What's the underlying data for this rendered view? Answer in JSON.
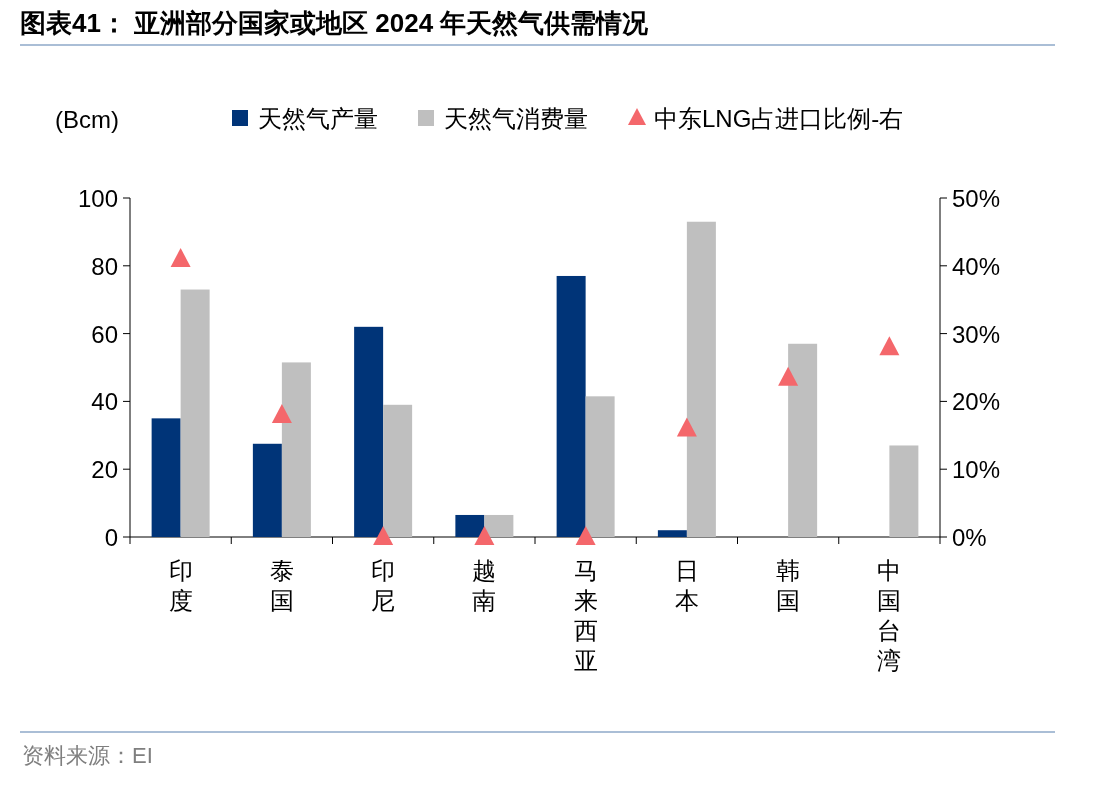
{
  "chart_data": {
    "type": "bar",
    "title": "图表41：  亚洲部分国家或地区 2024 年天然气供需情况",
    "ylabel": "(Bcm)",
    "categories": [
      "印度",
      "泰国",
      "印尼",
      "越南",
      "马来西亚",
      "日本",
      "韩国",
      "中国台湾"
    ],
    "series": [
      {
        "name": "天然气产量",
        "color": "#003478",
        "values": [
          35,
          27.5,
          62,
          6.5,
          77,
          2,
          0,
          0
        ]
      },
      {
        "name": "天然气消费量",
        "color": "#bfbfbf",
        "values": [
          73,
          51.5,
          39,
          6.5,
          41.5,
          93,
          57,
          27
        ]
      },
      {
        "name": "中东LNG占进口比例-右",
        "type": "scatter",
        "axis": "y2",
        "marker": "triangle",
        "color": "#f4676b",
        "values": [
          41,
          18,
          0,
          0,
          0,
          16,
          23.5,
          28
        ]
      }
    ],
    "ylim": [
      0,
      100
    ],
    "yticks": [
      0,
      20,
      40,
      60,
      80,
      100
    ],
    "y2lim": [
      0,
      50
    ],
    "y2ticks": [
      {
        "value": 0,
        "label": "0%"
      },
      {
        "value": 10,
        "label": "10%"
      },
      {
        "value": 20,
        "label": "20%"
      },
      {
        "value": 30,
        "label": "30%"
      },
      {
        "value": 40,
        "label": "40%"
      },
      {
        "value": 50,
        "label": "50%"
      }
    ],
    "legend": "top",
    "grid": false,
    "annotations": [
      "资料来源：EI"
    ]
  }
}
